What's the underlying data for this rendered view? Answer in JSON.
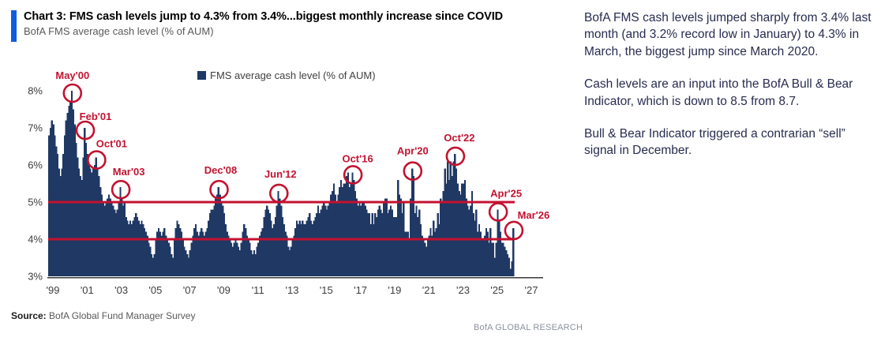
{
  "header": {
    "title": "Chart 3: FMS cash levels jump to 4.3% from 3.4%...biggest monthly increase since COVID",
    "subtitle": "BofA FMS average cash level (% of AUM)",
    "accent_color": "#0f5ce1"
  },
  "legend": {
    "label": "FMS average cash level (% of AUM)",
    "swatch_color": "#1f3864"
  },
  "source": {
    "label": "Source:",
    "text": "BofA Global Fund Manager Survey"
  },
  "footer": {
    "brand": "BofA GLOBAL RESEARCH"
  },
  "commentary": {
    "paragraphs": [
      "BofA FMS cash levels jumped sharply from 3.4% last month (and 3.2% record low in January) to 4.3% in March, the biggest jump since March 2020.",
      "Cash levels are an input into the BofA Bull & Bear Indicator, which is down to 8.5 from 8.7.",
      "Bull & Bear Indicator triggered a contrarian “sell” signal in December."
    ]
  },
  "chart_data": {
    "type": "bar",
    "title": "FMS average cash level (% of AUM)",
    "freq": "monthly",
    "x_start": "1999-01",
    "x_end": "2026-03",
    "ylim": [
      3,
      8
    ],
    "yticks": [
      "8%",
      "7%",
      "6%",
      "5%",
      "4%",
      "3%"
    ],
    "xticks": [
      "'99",
      "'01",
      "'03",
      "'05",
      "'07",
      "'09",
      "'11",
      "'13",
      "'15",
      "'17",
      "'19",
      "'21",
      "'23",
      "'25",
      "'27"
    ],
    "grid": false,
    "bar_color": "#1f3864",
    "annotation_color": "#c41230",
    "axis_color": "#3a3a3a",
    "reference_lines": [
      {
        "value": 5,
        "color": "#c41230"
      },
      {
        "value": 4,
        "color": "#c41230"
      }
    ],
    "annotations": [
      {
        "label": "May'00",
        "year": 2000,
        "month": 5,
        "value": 8.0
      },
      {
        "label": "Feb'01",
        "year": 2001,
        "month": 2,
        "value": 7.0
      },
      {
        "label": "Oct'01",
        "year": 2001,
        "month": 10,
        "value": 6.2
      },
      {
        "label": "Mar'03",
        "year": 2003,
        "month": 3,
        "value": 5.4
      },
      {
        "label": "Dec'08",
        "year": 2008,
        "month": 12,
        "value": 5.4
      },
      {
        "label": "Jun'12",
        "year": 2012,
        "month": 6,
        "value": 5.3
      },
      {
        "label": "Oct'16",
        "year": 2016,
        "month": 10,
        "value": 5.8
      },
      {
        "label": "Apr'20",
        "year": 2020,
        "month": 4,
        "value": 5.9
      },
      {
        "label": "Oct'22",
        "year": 2022,
        "month": 10,
        "value": 6.3
      },
      {
        "label": "Apr'25",
        "year": 2025,
        "month": 4,
        "value": 4.8
      },
      {
        "label": "Mar'26",
        "year": 2026,
        "month": 3,
        "value": 4.3
      }
    ],
    "values_by_year": {
      "1999": [
        6.8,
        7.0,
        7.2,
        7.1,
        6.8,
        6.5,
        6.3,
        5.9,
        5.7,
        5.9,
        6.3,
        6.8
      ],
      "2000": [
        7.2,
        7.4,
        7.6,
        7.7,
        8.0,
        7.5,
        7.1,
        6.6,
        6.2,
        5.9,
        5.7,
        5.6
      ],
      "2001": [
        6.2,
        7.0,
        6.6,
        6.3,
        6.0,
        5.9,
        5.8,
        5.9,
        6.0,
        6.2,
        5.9,
        5.7
      ],
      "2002": [
        5.4,
        5.2,
        5.0,
        4.9,
        5.0,
        5.1,
        5.2,
        5.1,
        5.0,
        4.9,
        4.8,
        4.7
      ],
      "2003": [
        4.8,
        5.0,
        5.4,
        5.1,
        4.9,
        5.0,
        4.6,
        4.5,
        4.4,
        4.5,
        4.4,
        4.5
      ],
      "2004": [
        4.6,
        4.7,
        4.6,
        4.5,
        4.4,
        4.5,
        4.4,
        4.3,
        4.2,
        4.1,
        3.9,
        3.8
      ],
      "2005": [
        3.6,
        3.5,
        3.6,
        4.0,
        4.2,
        4.3,
        4.2,
        4.1,
        4.2,
        4.3,
        4.1,
        4.0
      ],
      "2006": [
        3.9,
        3.8,
        3.6,
        3.5,
        4.0,
        4.3,
        4.5,
        4.4,
        4.3,
        4.2,
        4.0,
        3.8
      ],
      "2007": [
        3.7,
        3.6,
        3.5,
        3.7,
        3.9,
        4.1,
        4.3,
        4.4,
        4.2,
        4.1,
        4.2,
        4.3
      ],
      "2008": [
        4.2,
        4.1,
        4.2,
        4.3,
        4.5,
        4.7,
        4.8,
        4.8,
        4.9,
        5.1,
        5.2,
        5.4
      ],
      "2009": [
        5.2,
        5.0,
        4.9,
        4.7,
        4.4,
        4.2,
        4.1,
        4.0,
        3.9,
        3.8,
        3.9,
        4.0
      ],
      "2010": [
        3.9,
        3.8,
        3.7,
        3.9,
        4.2,
        4.4,
        4.3,
        4.1,
        4.0,
        3.9,
        3.7,
        3.6
      ],
      "2011": [
        3.7,
        3.6,
        3.8,
        3.9,
        4.1,
        4.2,
        4.3,
        4.6,
        4.8,
        4.9,
        4.8,
        4.7
      ],
      "2012": [
        4.5,
        4.3,
        4.4,
        4.6,
        4.9,
        5.3,
        5.1,
        4.9,
        4.6,
        4.4,
        4.2,
        4.1
      ],
      "2013": [
        3.8,
        3.7,
        3.8,
        4.0,
        4.1,
        4.3,
        4.5,
        4.4,
        4.5,
        4.4,
        4.5,
        4.4
      ],
      "2014": [
        4.4,
        4.5,
        4.6,
        4.7,
        4.5,
        4.4,
        4.5,
        4.6,
        4.7,
        4.9,
        4.7,
        4.8
      ],
      "2015": [
        4.9,
        5.0,
        4.9,
        4.8,
        4.9,
        5.0,
        5.2,
        5.3,
        5.5,
        5.2,
        5.0,
        5.2
      ],
      "2016": [
        5.4,
        5.6,
        5.4,
        5.5,
        5.5,
        5.7,
        5.8,
        5.4,
        5.5,
        5.8,
        5.6,
        5.3
      ],
      "2017": [
        5.1,
        4.9,
        5.0,
        4.9,
        5.0,
        5.0,
        4.9,
        4.8,
        4.7,
        4.7,
        4.4,
        4.7
      ],
      "2018": [
        4.4,
        4.7,
        4.6,
        4.8,
        4.9,
        4.8,
        4.7,
        5.0,
        5.1,
        5.1,
        4.7,
        4.8
      ],
      "2019": [
        4.9,
        4.8,
        4.6,
        4.6,
        4.6,
        5.6,
        5.2,
        5.1,
        4.7,
        5.0,
        4.2,
        4.2
      ],
      "2020": [
        4.2,
        4.0,
        5.1,
        5.9,
        5.7,
        4.7,
        4.9,
        4.6,
        4.8,
        4.4,
        4.1,
        4.0
      ],
      "2021": [
        3.9,
        3.8,
        4.0,
        4.1,
        4.3,
        4.1,
        4.5,
        4.2,
        4.3,
        4.7,
        4.4,
        5.1
      ],
      "2022": [
        5.0,
        5.3,
        5.9,
        5.5,
        6.1,
        5.6,
        6.1,
        5.7,
        6.1,
        6.3,
        5.9,
        5.5
      ],
      "2023": [
        5.3,
        5.2,
        5.5,
        5.5,
        5.6,
        5.1,
        4.9,
        4.8,
        4.9,
        5.3,
        4.7,
        4.5
      ],
      "2024": [
        4.8,
        4.2,
        4.4,
        4.2,
        4.0,
        4.0,
        4.1,
        4.3,
        4.2,
        3.9,
        4.3,
        3.9
      ],
      "2025": [
        3.9,
        3.5,
        3.9,
        4.8,
        4.5,
        4.2,
        3.9,
        3.9,
        3.8,
        3.7,
        3.6,
        3.5
      ],
      "2026": [
        3.2,
        3.4,
        4.3
      ]
    }
  }
}
